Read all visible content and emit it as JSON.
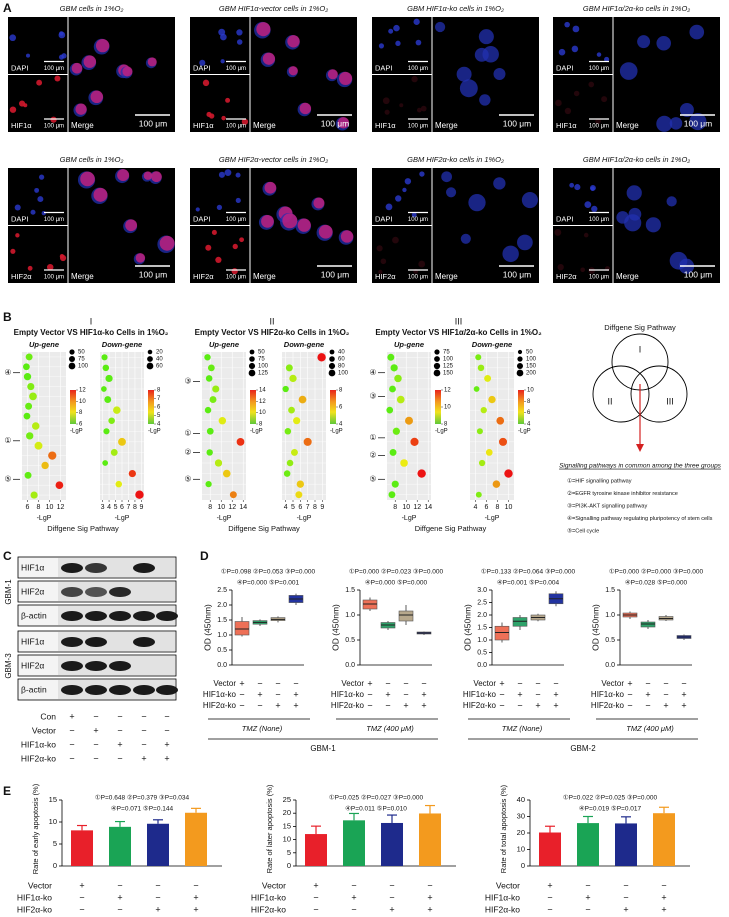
{
  "panel_labels": [
    "A",
    "B",
    "C",
    "D",
    "E"
  ],
  "panel_a": {
    "rows": [
      {
        "cells": [
          {
            "title": "GBM cells in 1%O₂",
            "stain": "DAPI",
            "target": "HIF1α",
            "merge": "Merge",
            "scale": "100 μm"
          },
          {
            "title": "GBM HIF1α-vector cells in 1%O₂",
            "stain": "DAPI",
            "target": "HIF1α",
            "merge": "Merge",
            "scale": "100 μm"
          },
          {
            "title": "GBM HIF1α-ko cells in 1%O₂",
            "stain": "DAPI",
            "target": "HIF1α",
            "merge": "Merge",
            "scale": "100 μm"
          },
          {
            "title": "GBM HIF1α/2α-ko cells in 1%O₂",
            "stain": "DAPI",
            "target": "HIF1α",
            "merge": "Merge",
            "scale": "100 μm"
          }
        ]
      },
      {
        "cells": [
          {
            "title": "GBM cells in 1%O₂",
            "stain": "DAPI",
            "target": "HIF2α",
            "merge": "Merge",
            "scale": "100 μm"
          },
          {
            "title": "GBM HIF2α-vector cells in 1%O₂",
            "stain": "DAPI",
            "target": "HIF2α",
            "merge": "Merge",
            "scale": "100 μm"
          },
          {
            "title": "GBM HIF2α-ko cells in 1%O₂",
            "stain": "DAPI",
            "target": "HIF2α",
            "merge": "Merge",
            "scale": "100 μm"
          },
          {
            "title": "GBM HIF1α/2α-ko cells in 1%O₂",
            "stain": "DAPI",
            "target": "HIF2α",
            "merge": "Merge",
            "scale": "100 μm"
          }
        ]
      }
    ]
  },
  "panel_b": {
    "groups": [
      {
        "numeral": "I",
        "title": "Empty Vector VS HIF1α-ko Cells in 1%O₂",
        "xlabel": "Diffgene Sig Pathway",
        "markers": [
          "④",
          "①",
          "⑤"
        ]
      },
      {
        "numeral": "II",
        "title": "Empty Vector VS HIF2α-ko Cells in 1%O₂",
        "xlabel": "Diffgene Sig Pathway",
        "markers": [
          "③",
          "①",
          "②",
          "⑤"
        ]
      },
      {
        "numeral": "III",
        "title": "Empty Vector VS HIF1α/2α-ko Cells in 1%O₂",
        "xlabel": "Diffgene Sig Pathway",
        "markers": [
          "④",
          "③",
          "①",
          "②",
          "⑤"
        ]
      }
    ],
    "venn": {
      "title": "Diffgene Sig Pathway",
      "sets": [
        "I",
        "II",
        "III"
      ],
      "caption": "Signalling pathways in common among the three groups",
      "items": [
        "①=HIF signalling pathway",
        "②=EGFR tyrosine kinase inhibitor resistance",
        "③=PI3K-AKT signalling pathway",
        "④=Signalling pathway regulating pluripotency of stem cells",
        "⑤=Cell cycle"
      ]
    }
  },
  "panel_c": {
    "groups": [
      {
        "label": "GBM-1",
        "rows": [
          "HIF1α",
          "HIF2α",
          "β-actin"
        ]
      },
      {
        "label": "GBM-3",
        "rows": [
          "HIF1α",
          "HIF2α",
          "β-actin"
        ]
      }
    ],
    "conditions": [
      {
        "label": "Con",
        "signs": [
          "+",
          "−",
          "−",
          "−",
          "−"
        ]
      },
      {
        "label": "Vector",
        "signs": [
          "−",
          "+",
          "−",
          "−",
          "−"
        ]
      },
      {
        "label": "HIF1α-ko",
        "signs": [
          "−",
          "−",
          "+",
          "−",
          "+"
        ]
      },
      {
        "label": "HIF2α-ko",
        "signs": [
          "−",
          "−",
          "−",
          "+",
          "+"
        ]
      }
    ]
  },
  "panel_d": {
    "groups": [
      "GBM-1",
      "GBM-2"
    ]
  },
  "chart_data": [
    {
      "type": "bubble",
      "title": "Up-gene",
      "x": [
        6.3,
        5.8,
        6.0,
        6.6,
        7.0,
        6.2,
        5.9,
        7.5,
        6.4,
        8.0,
        10.5,
        9.2,
        6.1,
        11.8,
        7.2
      ],
      "size": [
        60,
        55,
        70,
        65,
        80,
        60,
        55,
        75,
        70,
        85,
        95,
        70,
        60,
        80,
        65
      ],
      "xlim": [
        5,
        13
      ],
      "xticks": [
        6,
        8,
        10,
        12
      ],
      "xlabel": "-LgP",
      "size_legend": [
        50,
        75,
        100
      ],
      "color_legend": [
        12,
        10,
        8,
        6
      ],
      "color_legend_title": "-LgP",
      "grid": true
    },
    {
      "type": "bubble",
      "title": "Down-gene",
      "x": [
        3.3,
        3.5,
        4.0,
        3.2,
        3.8,
        5.2,
        4.4,
        3.6,
        6.0,
        4.8,
        3.4,
        7.6,
        5.5,
        8.7
      ],
      "size": [
        25,
        30,
        40,
        20,
        35,
        45,
        30,
        25,
        50,
        35,
        20,
        40,
        30,
        60
      ],
      "xlim": [
        2.6,
        9.4
      ],
      "xticks": [
        3,
        4,
        5,
        6,
        7,
        8,
        9
      ],
      "xlabel": "-LgP",
      "size_legend": [
        20,
        40,
        60
      ],
      "color_legend": [
        8,
        7,
        6,
        5,
        4
      ],
      "color_legend_title": "-LgP",
      "grid": true
    },
    {
      "type": "bubble",
      "title": "Up-gene",
      "x": [
        7.5,
        8.2,
        7.8,
        9.0,
        8.5,
        7.6,
        10.2,
        8.0,
        13.5,
        7.9,
        9.5,
        11.0,
        7.7,
        12.2
      ],
      "size": [
        60,
        70,
        65,
        80,
        75,
        60,
        90,
        70,
        100,
        60,
        85,
        95,
        55,
        75
      ],
      "xlim": [
        6.5,
        14.5
      ],
      "xticks": [
        8,
        10,
        12,
        14
      ],
      "xlabel": "-LgP",
      "size_legend": [
        50,
        75,
        100,
        125
      ],
      "color_legend": [
        14,
        12,
        10,
        8
      ],
      "color_legend_title": "-LgP",
      "grid": true
    },
    {
      "type": "bubble",
      "title": "Down-gene",
      "x": [
        8.9,
        4.5,
        5.0,
        4.0,
        6.3,
        4.8,
        5.5,
        4.3,
        7.0,
        5.2,
        4.6,
        4.2,
        6.0,
        5.8
      ],
      "size": [
        100,
        60,
        70,
        45,
        80,
        55,
        65,
        50,
        90,
        60,
        50,
        50,
        70,
        60
      ],
      "xlim": [
        3.5,
        9.5
      ],
      "xticks": [
        4,
        5,
        6,
        7,
        8,
        9
      ],
      "xlabel": "-LgP",
      "size_legend": [
        40,
        60,
        80,
        100
      ],
      "color_legend": [
        8,
        6,
        4
      ],
      "color_legend_title": "-LgP",
      "grid": true
    },
    {
      "type": "bubble",
      "title": "Up-gene",
      "x": [
        7.2,
        7.8,
        8.5,
        7.5,
        9.0,
        7.0,
        10.5,
        8.2,
        11.5,
        7.6,
        9.6,
        12.8,
        8.0,
        7.4
      ],
      "size": [
        90,
        100,
        110,
        85,
        120,
        80,
        130,
        100,
        140,
        90,
        115,
        150,
        95,
        85
      ],
      "xlim": [
        6.5,
        14.5
      ],
      "xticks": [
        8,
        10,
        12,
        14
      ],
      "xlabel": "-LgP",
      "size_legend": [
        75,
        100,
        125,
        150
      ],
      "color_legend": [
        12,
        10,
        8
      ],
      "color_legend_title": "-LgP",
      "grid": true
    },
    {
      "type": "bubble",
      "title": "Down-gene",
      "x": [
        4.5,
        5.0,
        6.2,
        4.2,
        7.0,
        5.5,
        8.5,
        4.8,
        9.0,
        6.5,
        5.2,
        10.0,
        7.8,
        4.6
      ],
      "size": [
        80,
        100,
        120,
        70,
        140,
        90,
        160,
        80,
        180,
        110,
        90,
        200,
        150,
        75
      ],
      "xlim": [
        3,
        11
      ],
      "xticks": [
        4,
        6,
        8,
        10
      ],
      "xlabel": "-LgP",
      "size_legend": [
        50,
        100,
        150,
        200
      ],
      "color_legend": [
        10,
        8,
        6,
        4
      ],
      "color_legend_title": "-LgP",
      "grid": true
    },
    {
      "type": "box",
      "ylabel": "OD (450nm)",
      "ylim": [
        0,
        2.5
      ],
      "yticks": [
        {
          "value": 0,
          "label": "0.0"
        },
        0.5,
        {
          "value": 1,
          "label": "1.0"
        },
        1.5,
        {
          "value": 2,
          "label": "2.0"
        },
        2.5
      ],
      "min": [
        0.95,
        1.3,
        1.42,
        2.0
      ],
      "q1": [
        1.0,
        1.36,
        1.48,
        2.08
      ],
      "median": [
        1.2,
        1.42,
        1.52,
        2.2
      ],
      "q3": [
        1.45,
        1.48,
        1.58,
        2.32
      ],
      "max": [
        1.6,
        1.52,
        1.62,
        2.38
      ],
      "colors": [
        "#ee7057",
        "#2ea36a",
        "#b7a88c",
        "#2233a0"
      ],
      "annotations": [
        "①P=0.098 ②P=0.053 ③P=0.000",
        "④P=0.000 ⑤P=0.001"
      ],
      "sign_rows": [
        {
          "label": "Vector",
          "signs": [
            "+",
            "−",
            "−",
            "−"
          ]
        },
        {
          "label": "HIF1α-ko",
          "signs": [
            "−",
            "+",
            "−",
            "+"
          ]
        },
        {
          "label": "HIF2α-ko",
          "signs": [
            "−",
            "−",
            "+",
            "+"
          ]
        }
      ],
      "condition": "TMZ (None)"
    },
    {
      "type": "box",
      "ylabel": "OD (450nm)",
      "ylim": [
        0,
        1.5
      ],
      "yticks": [
        {
          "value": 0,
          "label": "0.0"
        },
        0.5,
        {
          "value": 1,
          "label": "1.0"
        },
        1.5
      ],
      "min": [
        1.08,
        0.7,
        0.8,
        0.6
      ],
      "q1": [
        1.12,
        0.74,
        0.88,
        0.62
      ],
      "median": [
        1.22,
        0.8,
        1.0,
        0.64
      ],
      "q3": [
        1.3,
        0.85,
        1.08,
        0.66
      ],
      "max": [
        1.35,
        0.88,
        1.2,
        0.67
      ],
      "colors": [
        "#ee7057",
        "#2ea36a",
        "#b7a88c",
        "#2233a0"
      ],
      "annotations": [
        "①P=0.000 ②P=0.023 ③P=0.000",
        "④P=0.000 ⑤P=0.000"
      ],
      "sign_rows": [
        {
          "label": "Vector",
          "signs": [
            "+",
            "−",
            "−",
            "−"
          ]
        },
        {
          "label": "HIF1α-ko",
          "signs": [
            "−",
            "+",
            "−",
            "+"
          ]
        },
        {
          "label": "HIF2α-ko",
          "signs": [
            "−",
            "−",
            "+",
            "+"
          ]
        }
      ],
      "condition": "TMZ (400 μM)"
    },
    {
      "type": "box",
      "ylabel": "OD (450nm)",
      "ylim": [
        0,
        3
      ],
      "yticks": [
        {
          "value": 0,
          "label": "0.0"
        },
        0.5,
        {
          "value": 1,
          "label": "1.0"
        },
        1.5,
        {
          "value": 2,
          "label": "2.0"
        },
        2.5,
        {
          "value": 3,
          "label": "3.0"
        }
      ],
      "min": [
        0.9,
        1.4,
        1.75,
        2.35
      ],
      "q1": [
        1.0,
        1.55,
        1.8,
        2.45
      ],
      "median": [
        1.3,
        1.75,
        1.9,
        2.65
      ],
      "q3": [
        1.55,
        1.9,
        2.0,
        2.85
      ],
      "max": [
        1.7,
        2.0,
        2.05,
        2.95
      ],
      "colors": [
        "#ee7057",
        "#2ea36a",
        "#b7a88c",
        "#2233a0"
      ],
      "annotations": [
        "①P=0.133 ②P=0.064 ③P=0.000",
        "④P=0.001 ⑤P=0.004"
      ],
      "sign_rows": [
        {
          "label": "Vector",
          "signs": [
            "+",
            "−",
            "−",
            "−"
          ]
        },
        {
          "label": "HIF1α-ko",
          "signs": [
            "−",
            "+",
            "−",
            "+"
          ]
        },
        {
          "label": "HIF2α-ko",
          "signs": [
            "−",
            "−",
            "+",
            "+"
          ]
        }
      ],
      "condition": "TMZ (None)"
    },
    {
      "type": "box",
      "ylabel": "OD (450nm)",
      "ylim": [
        0,
        1.5
      ],
      "yticks": [
        {
          "value": 0,
          "label": "0.0"
        },
        0.5,
        {
          "value": 1,
          "label": "1.0"
        },
        1.5
      ],
      "min": [
        0.92,
        0.72,
        0.88,
        0.5
      ],
      "q1": [
        0.96,
        0.76,
        0.9,
        0.53
      ],
      "median": [
        1.0,
        0.82,
        0.93,
        0.56
      ],
      "q3": [
        1.04,
        0.86,
        0.97,
        0.59
      ],
      "max": [
        1.07,
        0.9,
        1.0,
        0.61
      ],
      "colors": [
        "#ee7057",
        "#2ea36a",
        "#b7a88c",
        "#2233a0"
      ],
      "annotations": [
        "①P=0.000 ②P=0.000 ③P=0.000",
        "④P=0.028 ⑤P=0.000"
      ],
      "sign_rows": [
        {
          "label": "Vector",
          "signs": [
            "+",
            "−",
            "−",
            "−"
          ]
        },
        {
          "label": "HIF1α-ko",
          "signs": [
            "−",
            "+",
            "−",
            "+"
          ]
        },
        {
          "label": "HIF2α-ko",
          "signs": [
            "−",
            "−",
            "+",
            "+"
          ]
        }
      ],
      "condition": "TMZ (400 μM)"
    },
    {
      "type": "bar",
      "ylabel": "Rate of early apoptosis (%)",
      "ylim": [
        0,
        15
      ],
      "yticks": [
        0,
        5,
        10,
        15
      ],
      "values": [
        8.1,
        8.9,
        9.6,
        12.1
      ],
      "errors": [
        1.1,
        1.2,
        0.9,
        1.0
      ],
      "colors": [
        "#e8202a",
        "#1aa455",
        "#1e2a8c",
        "#f39a1e"
      ],
      "annotations": [
        "①P=0.648 ②P=0.379 ③P=0.034",
        "④P=0.071 ⑤P=0.144"
      ],
      "sign_rows": [
        {
          "label": "Vector",
          "signs": [
            "+",
            "−",
            "−",
            "−"
          ]
        },
        {
          "label": "HIF1α-ko",
          "signs": [
            "−",
            "+",
            "−",
            "+"
          ]
        },
        {
          "label": "HIF2α-ko",
          "signs": [
            "−",
            "−",
            "+",
            "+"
          ]
        }
      ]
    },
    {
      "type": "bar",
      "ylabel": "Rate of later apoptosis (%)",
      "ylim": [
        0,
        25
      ],
      "yticks": [
        0,
        5,
        10,
        15,
        20,
        25
      ],
      "values": [
        12.1,
        17.3,
        16.3,
        19.9
      ],
      "errors": [
        3.0,
        2.6,
        3.0,
        3.0
      ],
      "colors": [
        "#e8202a",
        "#1aa455",
        "#1e2a8c",
        "#f39a1e"
      ],
      "annotations": [
        "①P=0.025 ②P=0.027 ③P=0.000",
        "④P=0.011 ⑤P=0.010"
      ],
      "sign_rows": [
        {
          "label": "Vector",
          "signs": [
            "+",
            "−",
            "−",
            "−"
          ]
        },
        {
          "label": "HIF1α-ko",
          "signs": [
            "−",
            "+",
            "−",
            "+"
          ]
        },
        {
          "label": "HIF2α-ko",
          "signs": [
            "−",
            "−",
            "+",
            "+"
          ]
        }
      ]
    },
    {
      "type": "bar",
      "ylabel": "Rate of total apoptosis (%)",
      "ylim": [
        0,
        40
      ],
      "yticks": [
        0,
        10,
        20,
        30,
        40
      ],
      "values": [
        20.3,
        26.0,
        25.8,
        32.0
      ],
      "errors": [
        3.8,
        4.0,
        4.0,
        3.6
      ],
      "colors": [
        "#e8202a",
        "#1aa455",
        "#1e2a8c",
        "#f39a1e"
      ],
      "annotations": [
        "①P=0.022 ②P=0.025 ③P=0.000",
        "④P=0.019 ⑤P=0.017"
      ],
      "sign_rows": [
        {
          "label": "Vector",
          "signs": [
            "+",
            "−",
            "−",
            "−"
          ]
        },
        {
          "label": "HIF1α-ko",
          "signs": [
            "−",
            "+",
            "−",
            "+"
          ]
        },
        {
          "label": "HIF2α-ko",
          "signs": [
            "−",
            "−",
            "+",
            "+"
          ]
        }
      ]
    }
  ]
}
